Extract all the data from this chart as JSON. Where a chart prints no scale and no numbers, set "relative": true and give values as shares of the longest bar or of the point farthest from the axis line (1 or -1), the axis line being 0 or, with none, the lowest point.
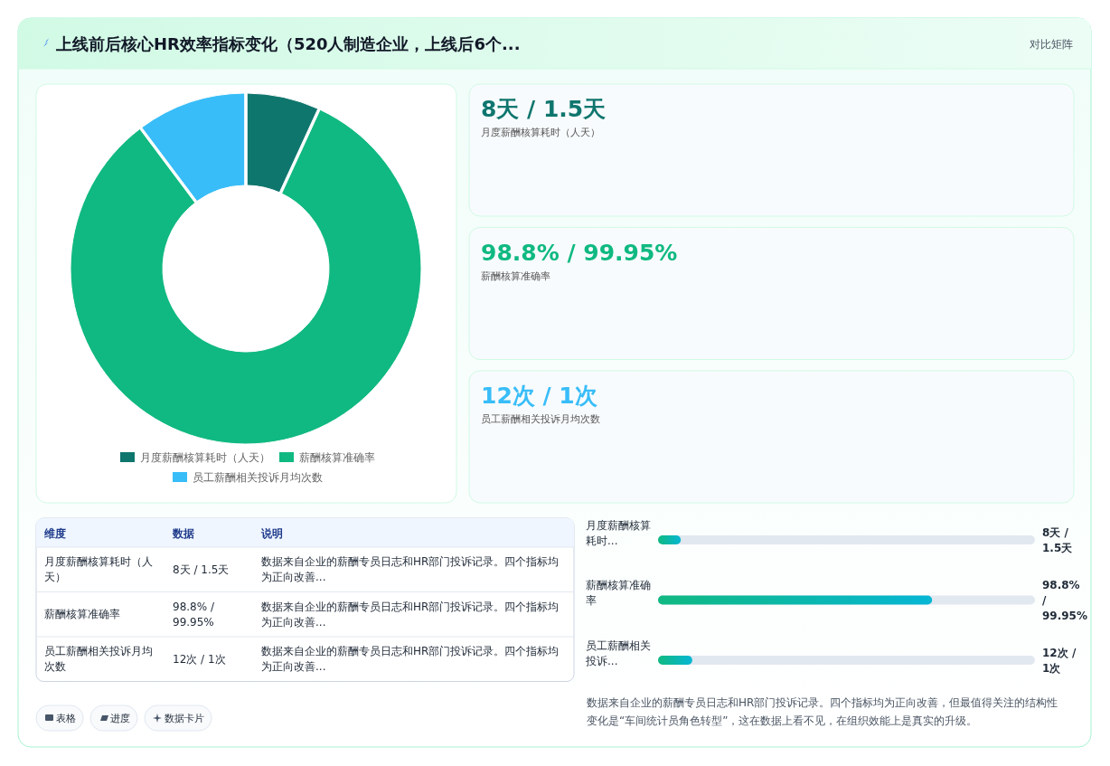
{
  "chart_data": [
    {
      "type": "other",
      "title": "上线前后核心HR效率指标变化（520人制造企业，上线后6个...",
      "subtitle": "对比矩阵"
    },
    {
      "type": "donut",
      "categories": [
        "月度薪酬核算耗时（人天）",
        "薪酬核算准确率",
        "员工薪酬相关投诉月均次数"
      ],
      "values": [
        6.7,
        83.2,
        10.1
      ],
      "colors": [
        "#0f766e",
        "#10b981",
        "#38bdf8"
      ],
      "legend": "bottom"
    },
    {
      "type": "other",
      "annotations": [
        "8天 / 1.5天",
        "月度薪酬核算耗时（人天）",
        "98.8% / 99.95%",
        "薪酬核算准确率",
        "12次 / 1次",
        "员工薪酬相关投诉月均次数"
      ],
      "colors": [
        "#0f766e",
        "#10b981",
        "#38bdf8"
      ]
    },
    {
      "type": "other",
      "categories": [
        "维度",
        "数据",
        "说明"
      ],
      "cells": [
        [
          "月度薪酬核算耗时（人天）",
          "8天 / 1.5天",
          "数据来自企业的薪酬专员日志和HR部门投诉记录。四个指标均为正向改善..."
        ],
        [
          "薪酬核算准确率",
          "98.8% / 99.95%",
          "数据来自企业的薪酬专员日志和HR部门投诉记录。四个指标均为正向改善..."
        ],
        [
          "员工薪酬相关投诉月均次数",
          "12次 / 1次",
          "数据来自企业的薪酬专员日志和HR部门投诉记录。四个指标均为正向改善..."
        ]
      ]
    },
    {
      "type": "bar",
      "orientation": "horizontal",
      "relative": true,
      "categories": [
        "月度薪酬核算耗时...",
        "薪酬核算准确率",
        "员工薪酬相关投诉..."
      ],
      "values": [
        0.083,
        1,
        0.125
      ],
      "annotations": [
        "8天 / 1.5天",
        "98.8% / 99.95%",
        "12次 / 1次",
        "数据来自企业的薪酬专员日志和HR部门投诉记录。四个指标均为正向改善，但最值得关注的结构性变化是“车间统计员角色转型”，这在数据上看不见，在组织效能上是真实的升级。"
      ]
    },
    {
      "type": "other",
      "annotations": [
        "表格",
        "进度",
        "数据卡片"
      ]
    }
  ]
}
